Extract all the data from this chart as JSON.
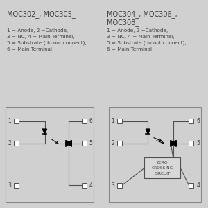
{
  "bg_color": "#d0d0d0",
  "box_bg": "#d0d0d0",
  "box_edge": "#888888",
  "line_color": "#505050",
  "text_color": "#404040",
  "title_left": "MOC302_, MOC305_",
  "title_right": "MOC304_, MOC306_,\nMOC308_",
  "desc_left": "1 = Anode, 2 =Cathode,\n3 = NC, 4 = Main Terminal,\n5 = Substrate (do not connect),\n6 = Main Terminal",
  "desc_right": "1 = Anode, 2 =Cathode,\n3 = NC, 4 = Main Terminal,\n5 = Substrate (do not connect),\n6 = Main Terminal",
  "fs_title": 7.0,
  "fs_desc": 5.2,
  "fs_pin": 5.5,
  "fs_zcc": 4.2
}
